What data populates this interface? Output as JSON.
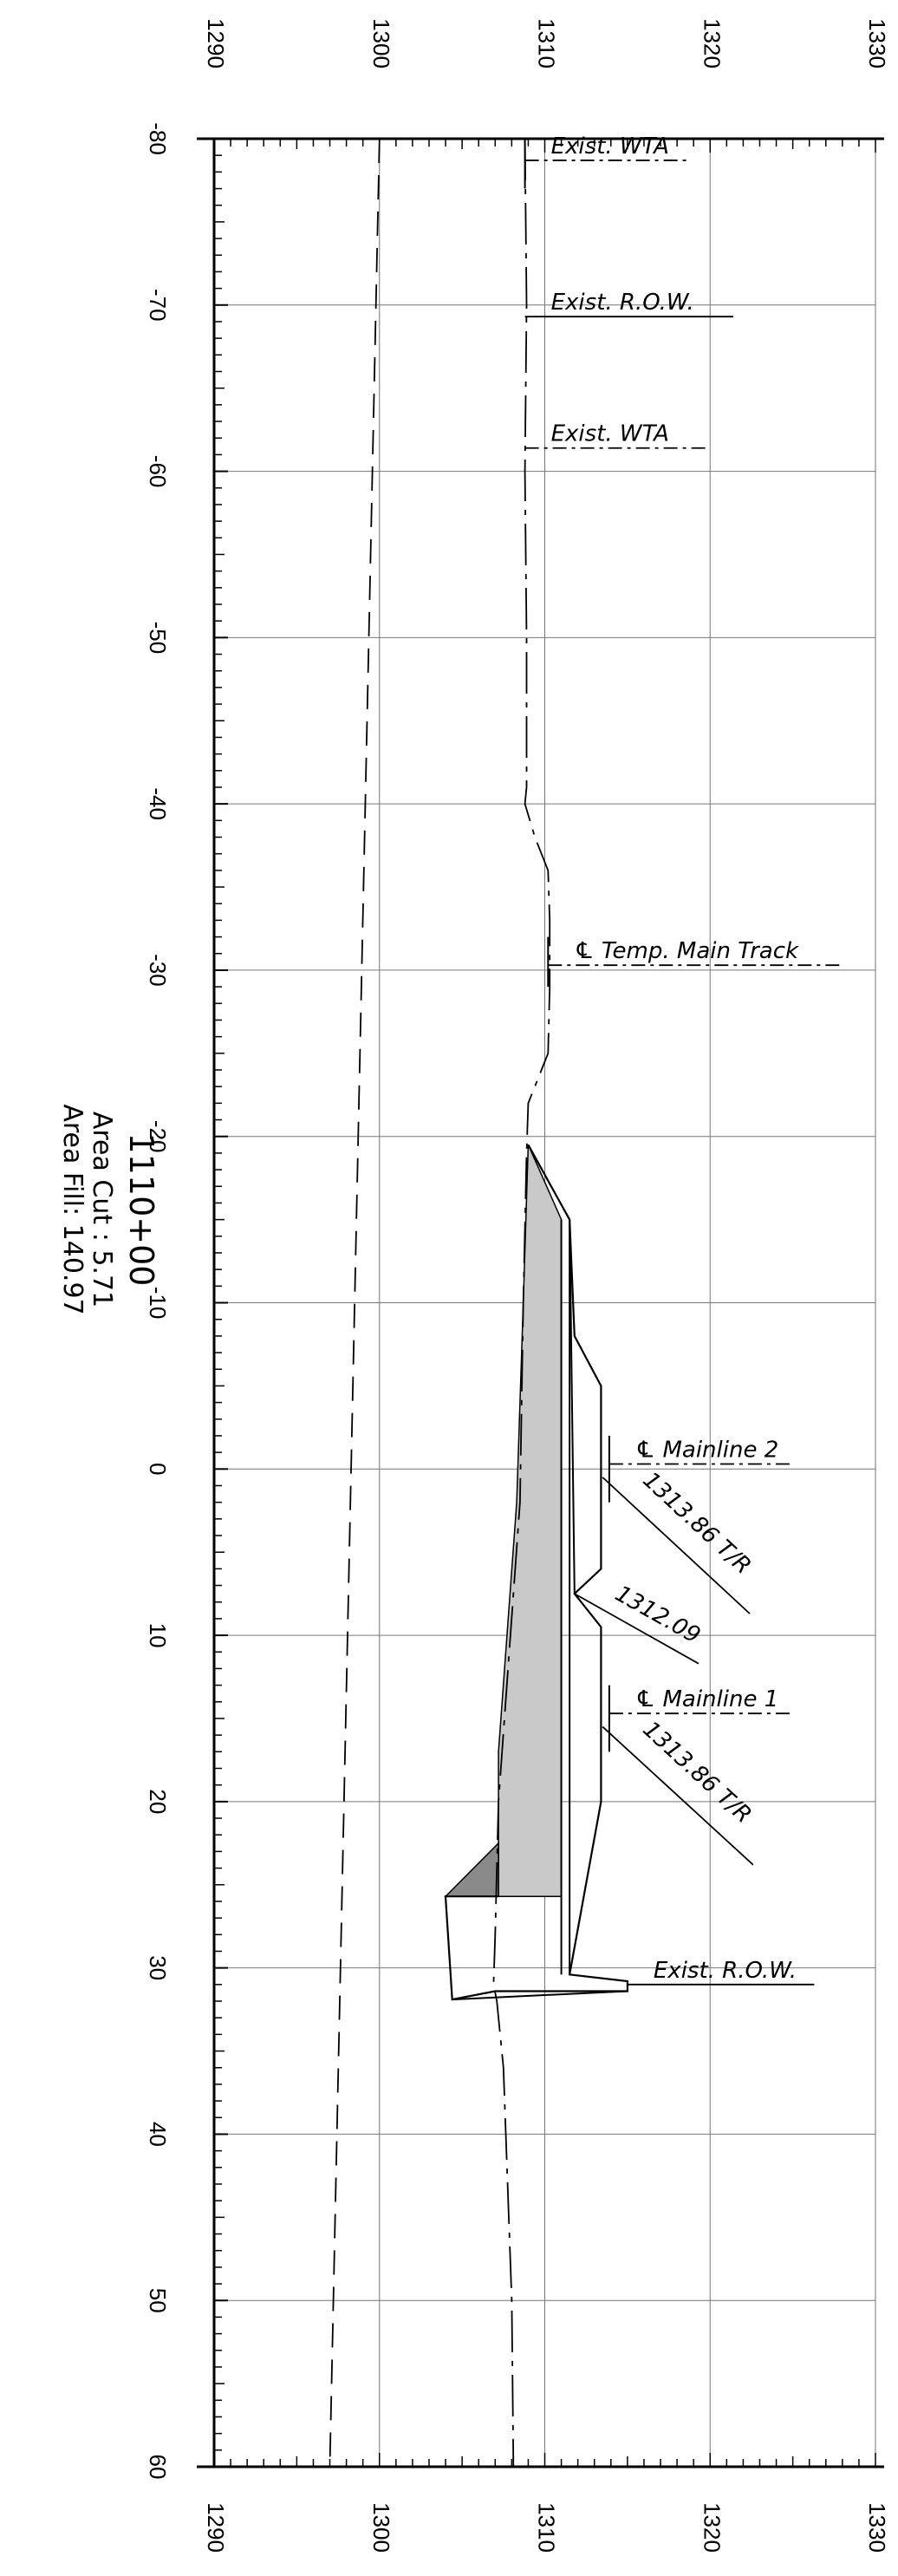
{
  "section_info": {
    "station": "1110+00",
    "area_cut": "Area Cut :  5.71",
    "area_fill": "Area Fill: 140.97"
  },
  "axes": {
    "offset_ticks": [
      "-80",
      "-70",
      "-60",
      "-50",
      "-40",
      "-30",
      "-20",
      "-10",
      "0",
      "10",
      "20",
      "30",
      "40",
      "50",
      "60"
    ],
    "elevation_ticks": [
      "1290",
      "1300",
      "1310",
      "1320",
      "1330"
    ]
  },
  "callouts": {
    "wta_top": "Exist. WTA",
    "row_top": "Exist. R.O.W.",
    "wta_mid": "Exist. WTA",
    "temp_main": "℄ Temp. Main Track",
    "mainline2": "℄ Mainline 2",
    "tr2": "1313.86 T/R",
    "mid_elev": "1312.09",
    "mainline1": "℄ Mainline 1",
    "tr1": "1313.86 T/R",
    "row_bottom": "Exist. R.O.W."
  },
  "chart_data": {
    "type": "cross-section",
    "offset_range": [
      -80,
      60
    ],
    "elevation_range": [
      1290,
      1330
    ],
    "ground_profile": [
      [
        -80,
        1308.8
      ],
      [
        -70,
        1308.9
      ],
      [
        -60,
        1308.8
      ],
      [
        -50,
        1308.9
      ],
      [
        -41,
        1308.9
      ],
      [
        -40,
        1308.8
      ],
      [
        -38,
        1309.4
      ],
      [
        -36,
        1310.2
      ],
      [
        -33,
        1310.3
      ],
      [
        -29,
        1310.3
      ],
      [
        -25,
        1310.2
      ],
      [
        -22,
        1309.0
      ],
      [
        -19,
        1308.9
      ],
      [
        -10,
        1308.7
      ],
      [
        2,
        1308.5
      ],
      [
        20,
        1307.2
      ],
      [
        28,
        1307.0
      ],
      [
        31,
        1306.9
      ],
      [
        32,
        1307.1
      ],
      [
        36,
        1307.5
      ],
      [
        50,
        1308.0
      ],
      [
        60,
        1308.1
      ]
    ],
    "left_dashed_line": [
      [
        -80,
        1300
      ],
      [
        60,
        1297
      ]
    ],
    "fill_region": [
      [
        -19.5,
        1309
      ],
      [
        -15,
        1311
      ],
      [
        25.7,
        1311
      ],
      [
        25.7,
        1307.2
      ],
      [
        17,
        1307.2
      ],
      [
        2,
        1308.3
      ],
      [
        -10,
        1308.7
      ]
    ],
    "cut_region": [
      [
        22.5,
        1307.2
      ],
      [
        25.7,
        1307.2
      ],
      [
        25.7,
        1304.0
      ]
    ],
    "template_outline": [
      [
        -19.5,
        1309
      ],
      [
        -15,
        1311.5
      ],
      [
        -8,
        1311.8
      ],
      [
        -5,
        1313.4
      ],
      [
        6,
        1313.4
      ],
      [
        7.5,
        1311.8
      ],
      [
        9.5,
        1313.4
      ],
      [
        20,
        1313.4
      ],
      [
        30.4,
        1311.5
      ],
      [
        30.8,
        1315.0
      ],
      [
        31.4,
        1315.0
      ],
      [
        31.4,
        1307.0
      ],
      [
        31.9,
        1304.4
      ],
      [
        25.7,
        1304.0
      ],
      [
        25.7,
        1307.2
      ]
    ],
    "series_lines": [
      {
        "from": [
          -15,
          1311
        ],
        "to": [
          30.4,
          1311
        ]
      },
      {
        "from": [
          -15,
          1311.5
        ],
        "to": [
          30.4,
          1311.5
        ]
      },
      {
        "from": [
          7.5,
          1311.8
        ],
        "to": [
          -15,
          1311.5
        ]
      },
      {
        "from": [
          31.9,
          1304.4
        ],
        "to": [
          31.4,
          1315.0
        ]
      }
    ],
    "grid": true
  }
}
